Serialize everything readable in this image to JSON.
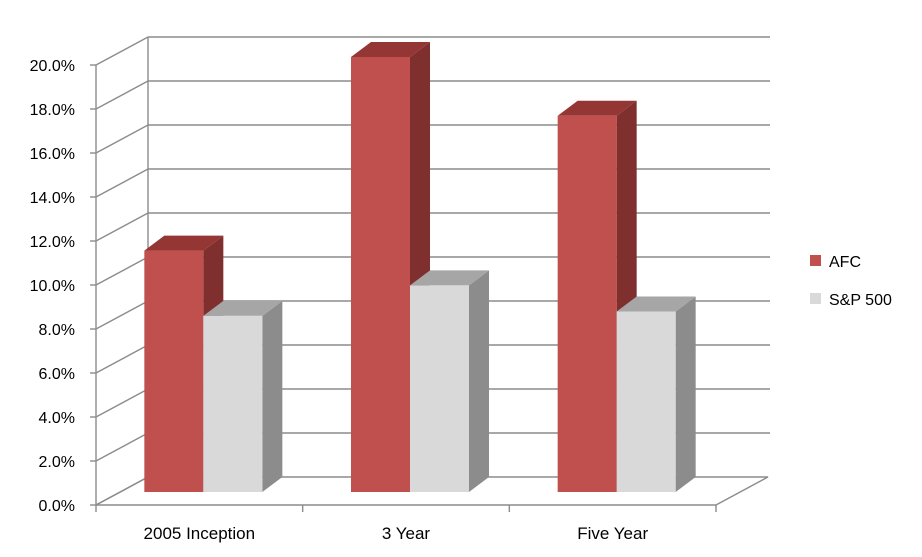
{
  "chart_data": {
    "type": "bar",
    "subtype": "3d-clustered-column",
    "title": "",
    "xlabel": "",
    "ylabel": "",
    "categories": [
      "2005 Inception",
      "3 Year",
      "Five Year"
    ],
    "series": [
      {
        "name": "AFC",
        "values": [
          11.1,
          20.0,
          17.3
        ],
        "color": "#c0504d",
        "side_color": "#7f2f2e",
        "top_color": "#943634"
      },
      {
        "name": "S&P 500",
        "values": [
          8.1,
          9.5,
          8.3
        ],
        "color": "#d9d9d9",
        "side_color": "#8c8c8c",
        "top_color": "#a6a6a6"
      }
    ],
    "ylim": [
      0,
      20
    ],
    "yticks": [
      "0.0%",
      "2.0%",
      "4.0%",
      "6.0%",
      "8.0%",
      "10.0%",
      "12.0%",
      "14.0%",
      "16.0%",
      "18.0%",
      "20.0%"
    ],
    "grid": true,
    "legend": "right"
  }
}
